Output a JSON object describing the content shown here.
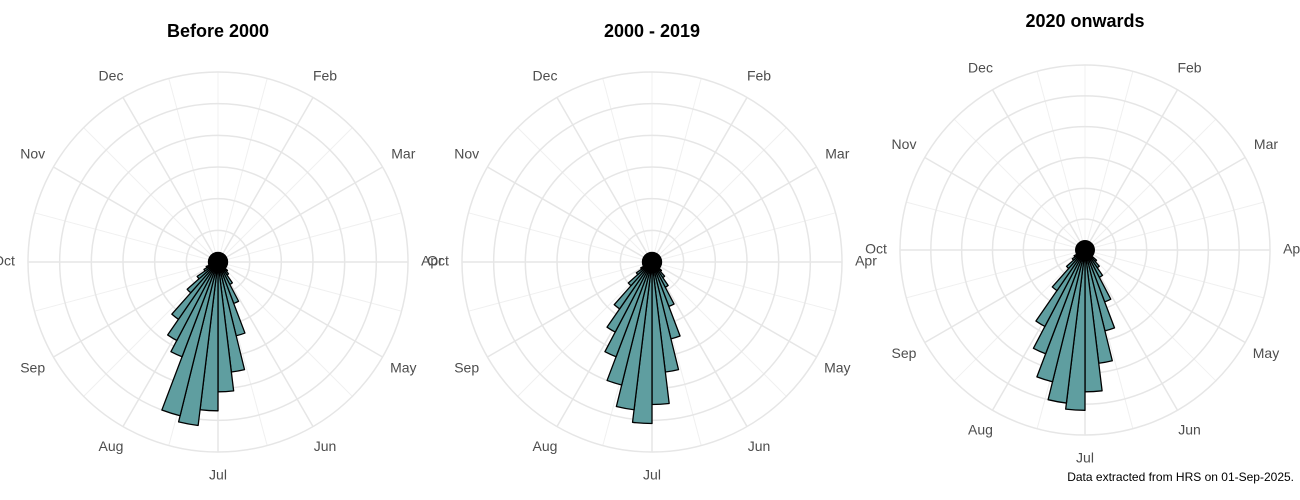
{
  "chart_data": [
    {
      "type": "polar_bar",
      "title": "Before 2000",
      "color": "#5f9ea0",
      "xlim": [
        0,
        12
      ],
      "xticks": [
        {
          "value": 1,
          "label": "Feb"
        },
        {
          "value": 2,
          "label": "Mar"
        },
        {
          "value": 3,
          "label": "Apr"
        },
        {
          "value": 4,
          "label": "May"
        },
        {
          "value": 5,
          "label": "Jun"
        },
        {
          "value": 6,
          "label": "Jul"
        },
        {
          "value": 7,
          "label": "Aug"
        },
        {
          "value": 8,
          "label": "Sep"
        },
        {
          "value": 9,
          "label": "Oct"
        },
        {
          "value": 10,
          "label": "Nov"
        },
        {
          "value": 11,
          "label": "Dec"
        }
      ],
      "ylim": [
        0,
        60
      ],
      "yticks": [
        0,
        10,
        20,
        30,
        40,
        50,
        60
      ],
      "values": [
        3,
        3,
        3,
        3,
        3,
        3,
        3,
        3,
        3,
        3,
        3,
        3,
        3,
        3,
        3,
        3,
        3,
        3,
        3,
        4,
        5,
        8,
        14,
        24,
        35,
        41,
        47,
        52,
        50,
        32,
        28,
        22,
        13,
        8,
        5,
        4,
        3,
        3,
        3,
        3,
        3,
        3,
        3,
        3,
        3,
        3,
        3,
        3,
        3,
        3,
        3,
        3
      ]
    },
    {
      "type": "polar_bar",
      "title": "2000 - 2019",
      "color": "#5f9ea0",
      "xlim": [
        0,
        12
      ],
      "xticks": [
        {
          "value": 1,
          "label": "Feb"
        },
        {
          "value": 2,
          "label": "Mar"
        },
        {
          "value": 3,
          "label": "Apr"
        },
        {
          "value": 4,
          "label": "May"
        },
        {
          "value": 5,
          "label": "Jun"
        },
        {
          "value": 6,
          "label": "Jul"
        },
        {
          "value": 7,
          "label": "Aug"
        },
        {
          "value": 8,
          "label": "Sep"
        },
        {
          "value": 9,
          "label": "Oct"
        },
        {
          "value": 10,
          "label": "Nov"
        },
        {
          "value": 11,
          "label": "Dec"
        }
      ],
      "ylim": [
        0,
        60
      ],
      "yticks": [
        0,
        10,
        20,
        30,
        40,
        50,
        60
      ],
      "values": [
        3,
        3,
        3,
        3,
        3,
        3,
        3,
        3,
        3,
        3,
        3,
        3,
        3,
        3,
        3,
        3,
        3,
        3,
        3,
        4,
        6,
        9,
        15,
        25,
        35,
        45,
        51,
        47,
        40,
        32,
        25,
        18,
        10,
        6,
        4,
        3,
        3,
        3,
        3,
        3,
        3,
        3,
        3,
        3,
        3,
        3,
        3,
        3,
        3,
        3,
        3,
        3
      ]
    },
    {
      "type": "polar_bar",
      "title": "2020 onwards",
      "color": "#5f9ea0",
      "xlim": [
        0,
        12
      ],
      "xticks": [
        {
          "value": 1,
          "label": "Feb"
        },
        {
          "value": 2,
          "label": "Mar"
        },
        {
          "value": 3,
          "label": "Apr"
        },
        {
          "value": 4,
          "label": "May"
        },
        {
          "value": 5,
          "label": "Jun"
        },
        {
          "value": 6,
          "label": "Jul"
        },
        {
          "value": 7,
          "label": "Aug"
        },
        {
          "value": 8,
          "label": "Sep"
        },
        {
          "value": 9,
          "label": "Oct"
        },
        {
          "value": 10,
          "label": "Nov"
        },
        {
          "value": 11,
          "label": "Dec"
        }
      ],
      "ylim": [
        0,
        60
      ],
      "yticks": [
        0,
        10,
        20,
        30,
        40,
        50,
        60
      ],
      "values": [
        3,
        3,
        3,
        3,
        3,
        3,
        3,
        3,
        3,
        3,
        3,
        3,
        3,
        3,
        3,
        3,
        3,
        3,
        3,
        5,
        7,
        10,
        18,
        27,
        37,
        46,
        52,
        50,
        44,
        36,
        28,
        16,
        8,
        5,
        4,
        3,
        3,
        3,
        3,
        3,
        3,
        3,
        3,
        3,
        3,
        3,
        3,
        3,
        3,
        3,
        3,
        3
      ]
    }
  ],
  "footer": "Data extracted from HRS on 01-Sep-2025."
}
